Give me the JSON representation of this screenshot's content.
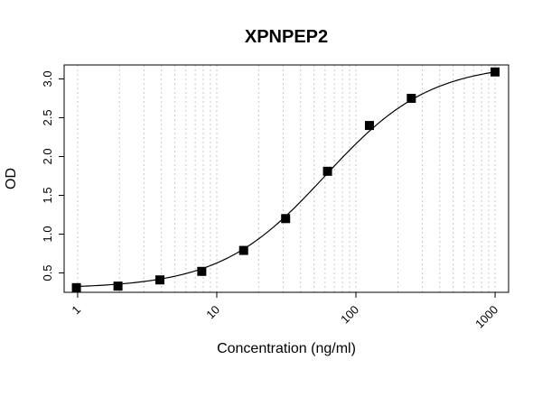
{
  "chart_data": {
    "type": "scatter",
    "title": "XPNPEP2",
    "xlabel": "Concentration (ng/ml)",
    "ylabel": "OD",
    "x_scale": "log",
    "xlim": [
      0.8,
      1250
    ],
    "ylim": [
      0.25,
      3.18
    ],
    "x_ticks": [
      1,
      10,
      100,
      1000
    ],
    "x_tick_labels": [
      "1",
      "10",
      "100",
      "1000"
    ],
    "y_ticks": [
      0.5,
      1.0,
      1.5,
      2.0,
      2.5,
      3.0
    ],
    "y_tick_labels": [
      "0.5",
      "1.0",
      "1.5",
      "2.0",
      "2.5",
      "3.0"
    ],
    "grid": "vertical dotted lines at log minor ticks",
    "legend": "none",
    "series": [
      {
        "marker": "filled-square",
        "x": [
          0.98,
          1.95,
          3.9,
          7.8,
          15.6,
          31.25,
          62.5,
          125,
          250,
          1000
        ],
        "y": [
          0.31,
          0.33,
          0.41,
          0.52,
          0.79,
          1.2,
          1.81,
          2.4,
          2.75,
          3.09
        ]
      }
    ],
    "fit_curve": {
      "model": "4PL",
      "bottom": 0.3,
      "top": 3.2,
      "ec50": 60,
      "hill": 1.15
    },
    "colors": {
      "points": "#000000",
      "curve": "#000000",
      "grid": "#c8c8c8"
    }
  }
}
